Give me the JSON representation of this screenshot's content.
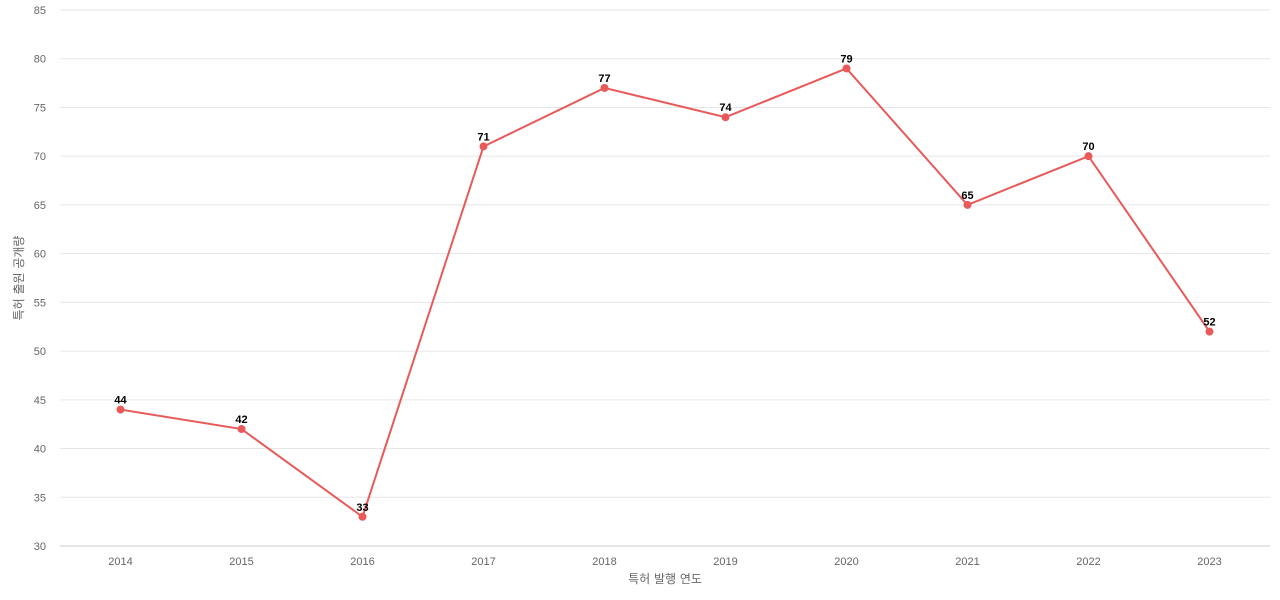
{
  "chart_data": {
    "type": "line",
    "categories": [
      "2014",
      "2015",
      "2016",
      "2017",
      "2018",
      "2019",
      "2020",
      "2021",
      "2022",
      "2023"
    ],
    "series": [
      {
        "values": [
          44,
          42,
          33,
          71,
          77,
          74,
          79,
          65,
          70,
          52
        ],
        "color": "#e85a5a"
      }
    ],
    "xlabel": "특허 발행 연도",
    "ylabel": "특허 출원 공개량",
    "ylim": [
      30,
      85
    ],
    "yticks": [
      30,
      35,
      40,
      45,
      50,
      55,
      60,
      65,
      70,
      75,
      80,
      85
    ],
    "grid": true,
    "data_labels": true,
    "legend": "none"
  }
}
